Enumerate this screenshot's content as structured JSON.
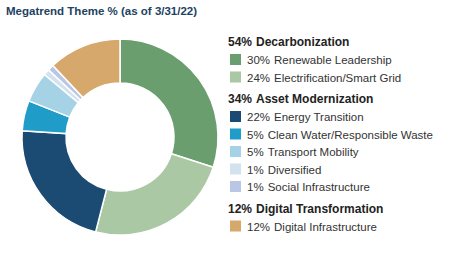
{
  "chart_data": {
    "type": "donut",
    "title": "Megatrend Theme % (as of 3/31/22)",
    "groups": [
      {
        "name": "Decarbonization",
        "value": 54,
        "value_label": "54%",
        "categories": [
          "Renewable Leadership",
          "Electrification/Smart Grid"
        ],
        "values": [
          30,
          24
        ],
        "value_labels": [
          "30%",
          "24%"
        ],
        "colors": [
          "#6b9e6e",
          "#a9c8a3"
        ]
      },
      {
        "name": "Asset Modernization",
        "value": 34,
        "value_label": "34%",
        "categories": [
          "Energy Transition",
          "Clean Water/Responsible Waste",
          "Transport Mobility",
          "Diversified",
          "Social Infrastructure"
        ],
        "values": [
          22,
          5,
          5,
          1,
          1
        ],
        "value_labels": [
          "22%",
          "5%",
          "5%",
          "1%",
          "1%"
        ],
        "colors": [
          "#1b4b73",
          "#1f9cc8",
          "#a6d2e6",
          "#d3e3ee",
          "#b9c6e6"
        ]
      },
      {
        "name": "Digital Transformation",
        "value": 12,
        "value_label": "12%",
        "categories": [
          "Digital Infrastructure"
        ],
        "values": [
          12
        ],
        "value_labels": [
          "12%"
        ],
        "colors": [
          "#d6a86c"
        ]
      }
    ]
  }
}
